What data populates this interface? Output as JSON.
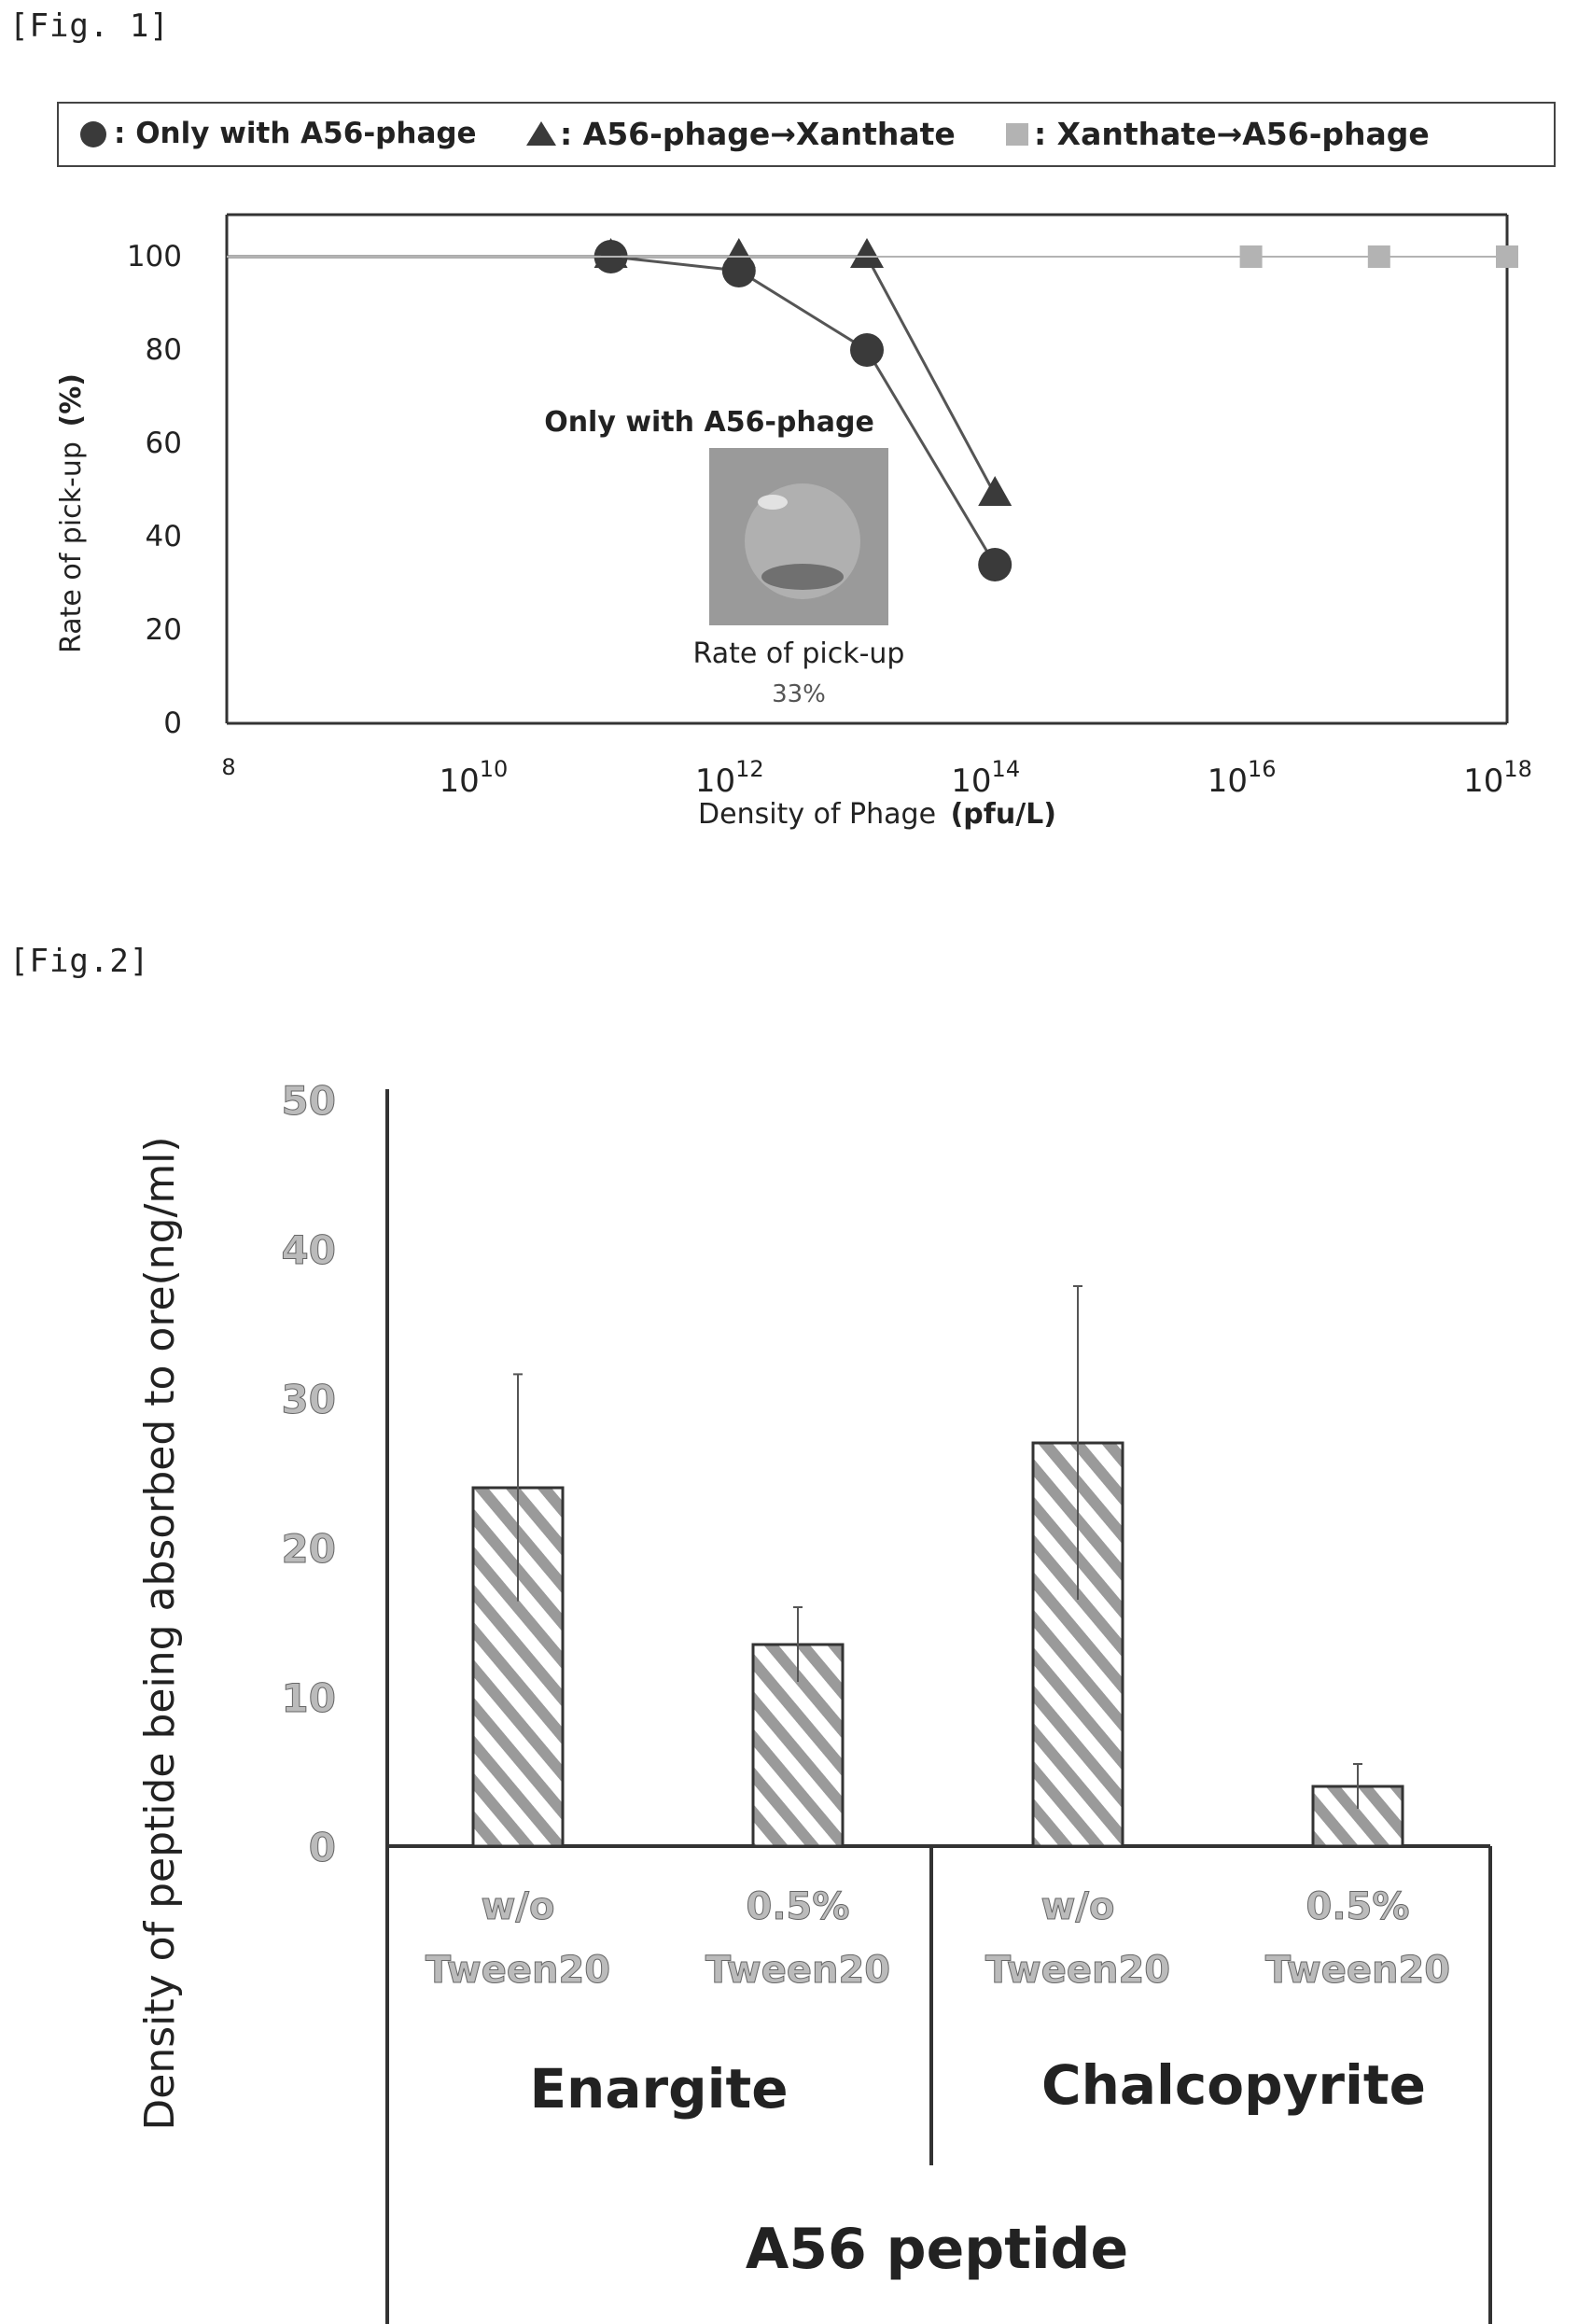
{
  "figures": {
    "fig1_label": "[Fig. 1]",
    "fig2_label": "[Fig.2]"
  },
  "chart_data": [
    {
      "type": "line",
      "xscale": "log",
      "x_ticks": [
        "8",
        "10",
        "10",
        "10",
        "10",
        "10",
        "10"
      ],
      "x_tick_exponents": [
        "",
        "10",
        "12",
        "14",
        "16",
        "18"
      ],
      "xlim": [
        100000000.0,
        1e+18
      ],
      "ylim": [
        0,
        100
      ],
      "yticks": [
        0,
        20,
        40,
        60,
        80,
        100
      ],
      "xlabel": "Density of Phage",
      "xlabel_unit": "(pfu/L)",
      "ylabel": "Rate of pick-up",
      "ylabel_unit": "(%)",
      "legend": {
        "position": "top",
        "entries": [
          {
            "marker": "circle",
            "color": "#3a3a3a",
            "label": ": Only with A56-phage"
          },
          {
            "marker": "triangle",
            "color": "#3a3a3a",
            "label": ": A56-phage→Xanthate"
          },
          {
            "marker": "square",
            "color": "#b3b3b3",
            "label": ": Xanthate→A56-phage"
          }
        ]
      },
      "series": [
        {
          "marker": "circle",
          "color": "#3a3a3a",
          "points": [
            [
              100000000.0,
              100
            ],
            [
              100000000000.0,
              100
            ],
            [
              1000000000000.0,
              97
            ],
            [
              10000000000000.0,
              80
            ],
            [
              100000000000000.0,
              34
            ]
          ]
        },
        {
          "marker": "triangle",
          "color": "#3a3a3a",
          "points": [
            [
              100000000.0,
              100
            ],
            [
              100000000000.0,
              100
            ],
            [
              1000000000000.0,
              100
            ],
            [
              10000000000000.0,
              100
            ],
            [
              100000000000000.0,
              49
            ]
          ]
        },
        {
          "marker": "square",
          "color": "#b3b3b3",
          "points": [
            [
              100000000.0,
              100
            ],
            [
              1e+16,
              100
            ],
            [
              1e+17,
              100
            ],
            [
              1e+18,
              100
            ]
          ]
        }
      ],
      "inset": {
        "title": "Only with A56-phage",
        "caption": "Rate of pick-up",
        "value_label": "33%"
      }
    },
    {
      "type": "bar",
      "ylabel": "Density of peptide being absorbed to ore(ng/ml)",
      "ylim": [
        0,
        50
      ],
      "yticks": [
        0,
        10,
        20,
        30,
        40,
        50
      ],
      "bar_pattern": "diagonal-hatch",
      "categories": [
        {
          "line1": "w/o",
          "line2": "Tween20",
          "group": "Enargite"
        },
        {
          "line1": "0.5%",
          "line2": "Tween20",
          "group": "Enargite"
        },
        {
          "line1": "w/o",
          "line2": "Tween20",
          "group": "Chalcopyrite"
        },
        {
          "line1": "0.5%",
          "line2": "Tween20",
          "group": "Chalcopyrite"
        }
      ],
      "values": [
        24,
        13.5,
        27,
        4
      ],
      "error_bars": [
        7.6,
        2.5,
        10.5,
        1.5
      ],
      "groups": [
        "Enargite",
        "Chalcopyrite"
      ],
      "supergroup": "A56 peptide"
    }
  ]
}
